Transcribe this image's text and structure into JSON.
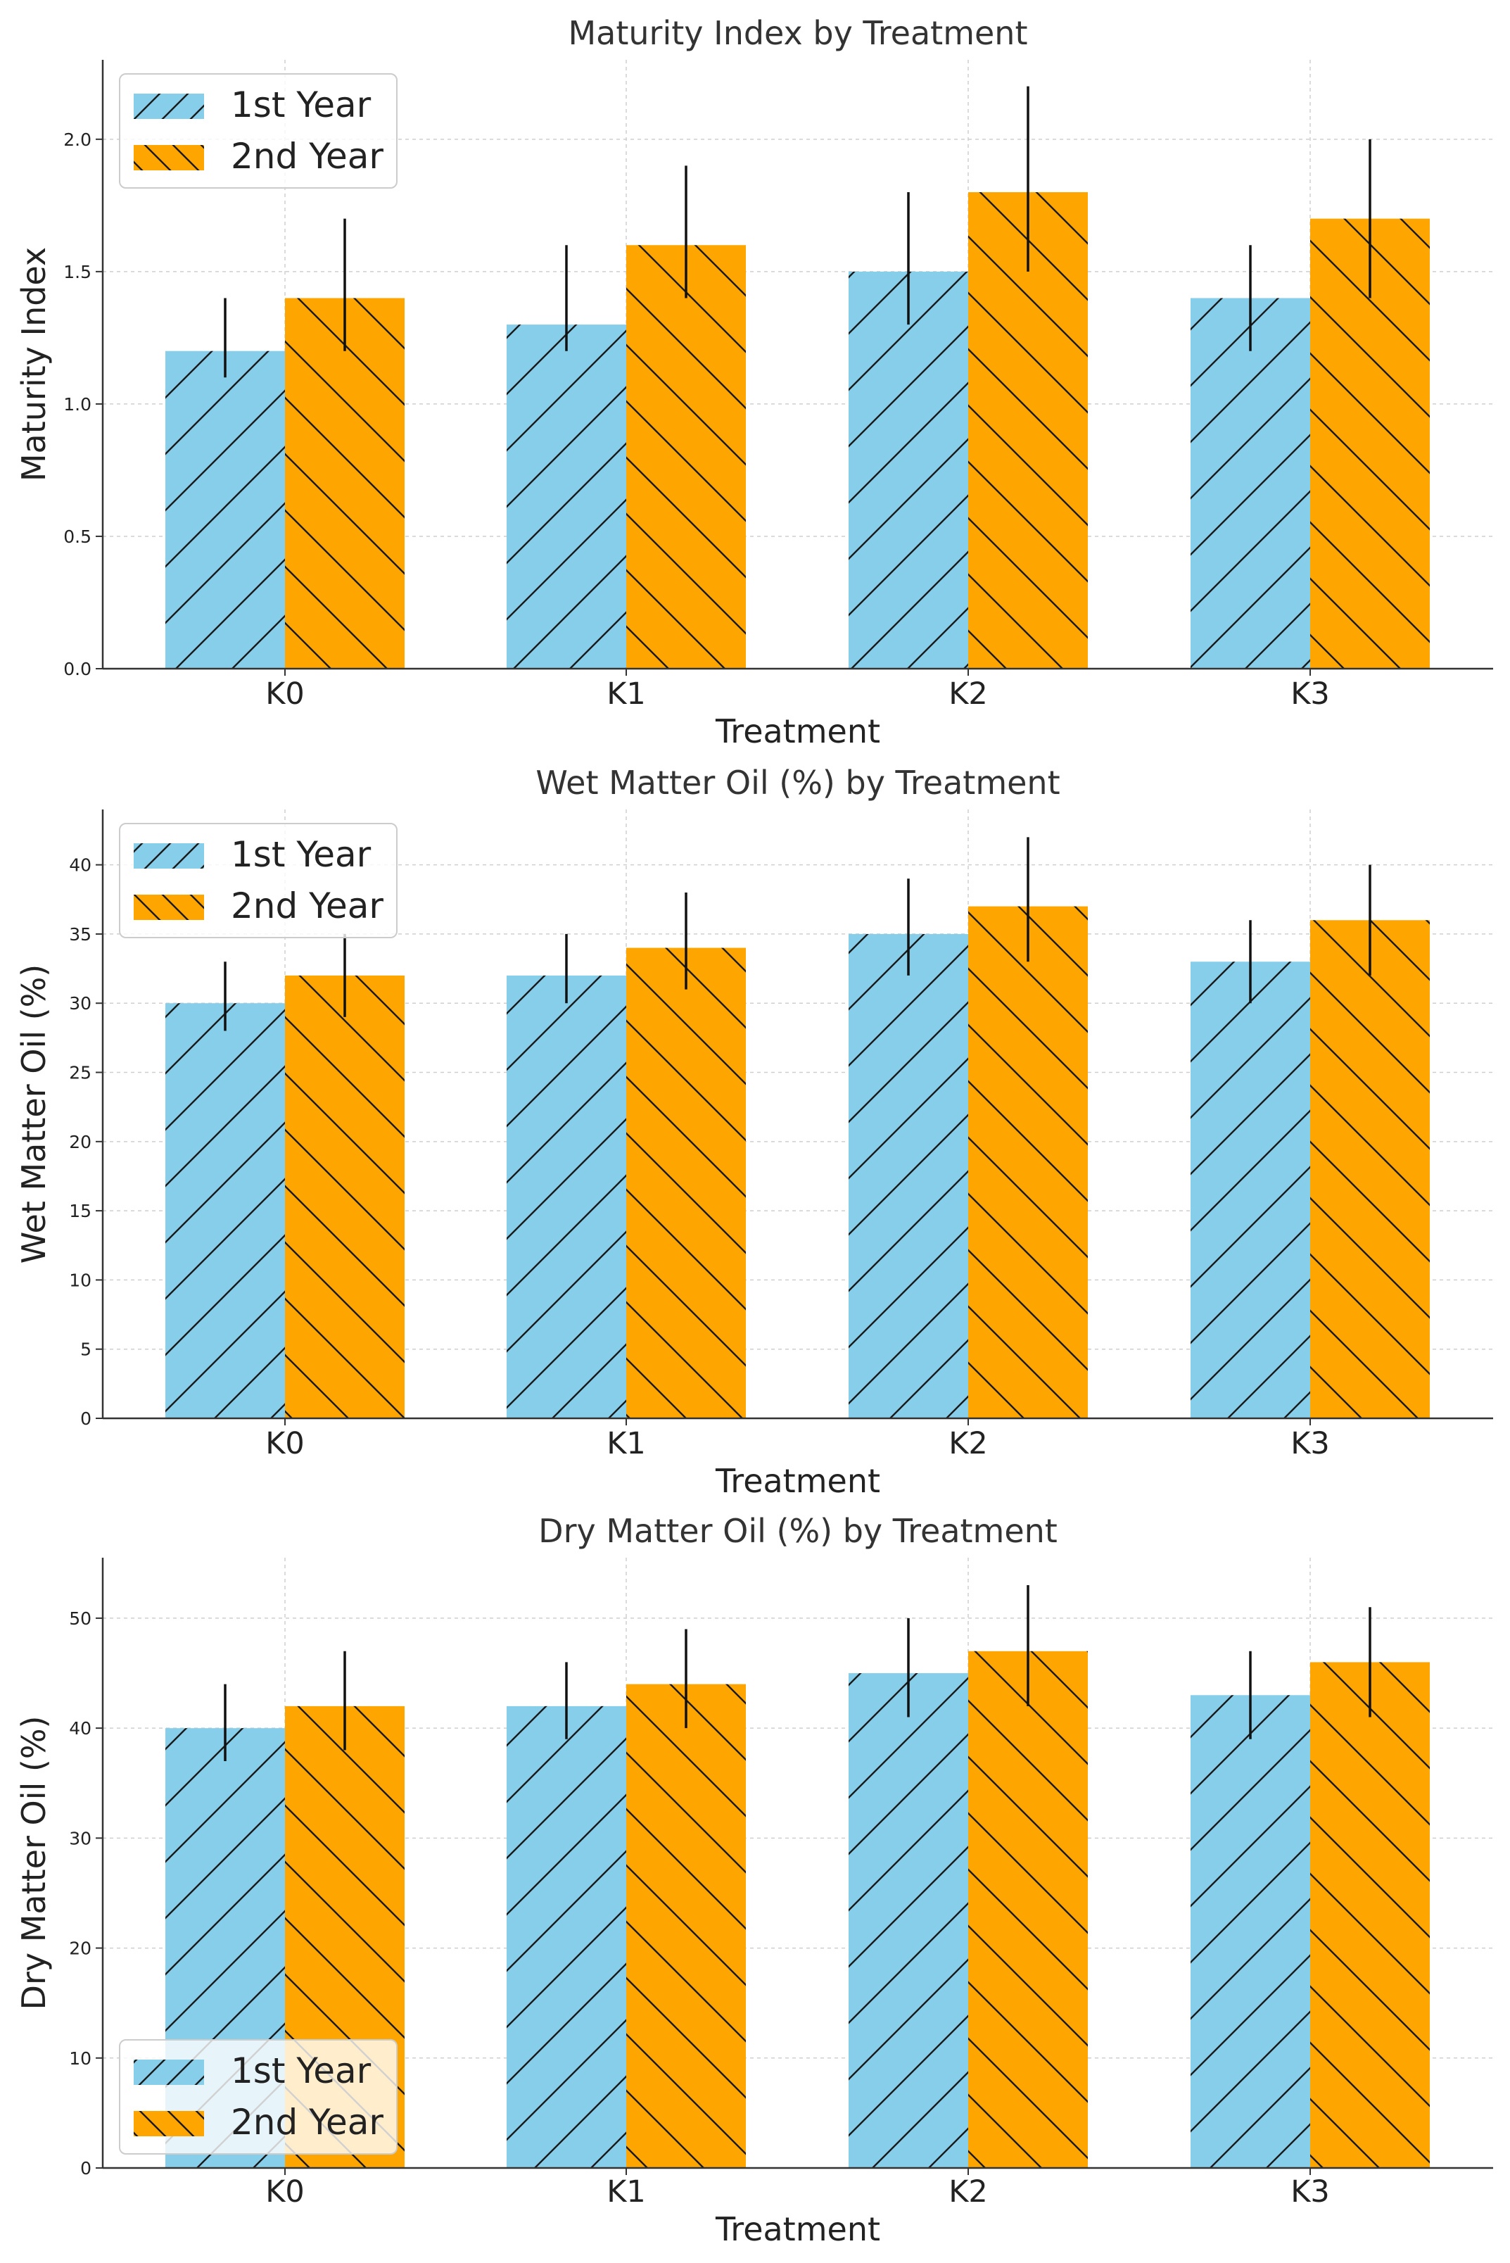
{
  "colors": {
    "year1": "#87CEEB",
    "year2": "#FFA500",
    "hatch": "#1a1a1a"
  },
  "chart_data": [
    {
      "type": "bar",
      "title": "Maturity Index by Treatment",
      "xlabel": "Treatment",
      "ylabel": "Maturity Index",
      "categories": [
        "K0",
        "K1",
        "K2",
        "K3"
      ],
      "ylim": [
        0,
        2.3
      ],
      "yticks": [
        0,
        0.5,
        1.0,
        1.5,
        2.0
      ],
      "ytick_labels": [
        "0.0",
        "0.5",
        "1.0",
        "1.5",
        "2.0"
      ],
      "legend_position": "upper left",
      "series": [
        {
          "name": "1st Year",
          "values": [
            1.2,
            1.3,
            1.5,
            1.4
          ],
          "err_low": [
            1.1,
            1.2,
            1.3,
            1.2
          ],
          "err_high": [
            1.4,
            1.6,
            1.8,
            1.6
          ]
        },
        {
          "name": "2nd Year",
          "values": [
            1.4,
            1.6,
            1.8,
            1.7
          ],
          "err_low": [
            1.2,
            1.4,
            1.5,
            1.4
          ],
          "err_high": [
            1.7,
            1.9,
            2.2,
            2.0
          ]
        }
      ]
    },
    {
      "type": "bar",
      "title": "Wet Matter Oil (%) by Treatment",
      "xlabel": "Treatment",
      "ylabel": "Wet Matter Oil (%)",
      "categories": [
        "K0",
        "K1",
        "K2",
        "K3"
      ],
      "ylim": [
        0,
        44
      ],
      "yticks": [
        0,
        5,
        10,
        15,
        20,
        25,
        30,
        35,
        40
      ],
      "ytick_labels": [
        "0",
        "5",
        "10",
        "15",
        "20",
        "25",
        "30",
        "35",
        "40"
      ],
      "legend_position": "upper left",
      "series": [
        {
          "name": "1st Year",
          "values": [
            30,
            32,
            35,
            33
          ],
          "err_low": [
            28,
            30,
            32,
            30
          ],
          "err_high": [
            33,
            35,
            39,
            36
          ]
        },
        {
          "name": "2nd Year",
          "values": [
            32,
            34,
            37,
            36
          ],
          "err_low": [
            29,
            31,
            33,
            32
          ],
          "err_high": [
            35,
            38,
            42,
            40
          ]
        }
      ]
    },
    {
      "type": "bar",
      "title": "Dry Matter Oil (%) by Treatment",
      "xlabel": "Treatment",
      "ylabel": "Dry Matter Oil (%)",
      "categories": [
        "K0",
        "K1",
        "K2",
        "K3"
      ],
      "ylim": [
        0,
        55.5
      ],
      "yticks": [
        0,
        10,
        20,
        30,
        40,
        50
      ],
      "ytick_labels": [
        "0",
        "10",
        "20",
        "30",
        "40",
        "50"
      ],
      "legend_position": "lower left",
      "series": [
        {
          "name": "1st Year",
          "values": [
            40,
            42,
            45,
            43
          ],
          "err_low": [
            37,
            39,
            41,
            39
          ],
          "err_high": [
            44,
            46,
            50,
            47
          ]
        },
        {
          "name": "2nd Year",
          "values": [
            42,
            44,
            47,
            46
          ],
          "err_low": [
            38,
            40,
            42,
            41
          ],
          "err_high": [
            47,
            49,
            53,
            51
          ]
        }
      ]
    }
  ]
}
